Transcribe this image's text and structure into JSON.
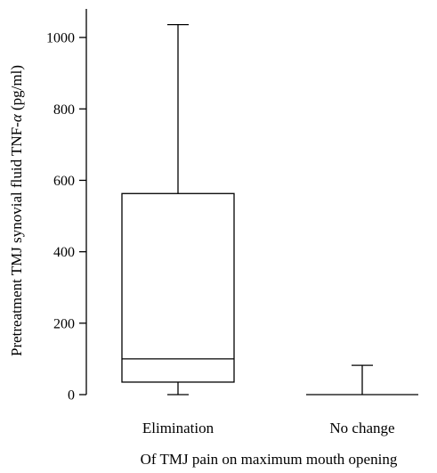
{
  "chart_data": {
    "type": "box",
    "title": "",
    "xlabel": "Of TMJ pain on maximum mouth opening",
    "ylabel_prefix": "Pretreatment TMJ synovial fluid TNF-",
    "ylabel_alpha": "α",
    "ylabel_suffix": " (pg/ml)",
    "ylim": [
      0,
      1080
    ],
    "yticks": [
      0,
      200,
      400,
      600,
      800,
      1000
    ],
    "ytick_labels": [
      "0",
      "200",
      "400",
      "600",
      "800",
      "1000"
    ],
    "categories": [
      "Elimination",
      "No change"
    ],
    "boxes": [
      {
        "category": "Elimination",
        "min": 0,
        "q1": 35,
        "median": 100,
        "q3": 563,
        "max": 1036
      },
      {
        "category": "No change",
        "min": 0,
        "q1": 0,
        "median": 0,
        "q3": 0,
        "max": 82
      }
    ],
    "grid": false,
    "legend": "none"
  }
}
